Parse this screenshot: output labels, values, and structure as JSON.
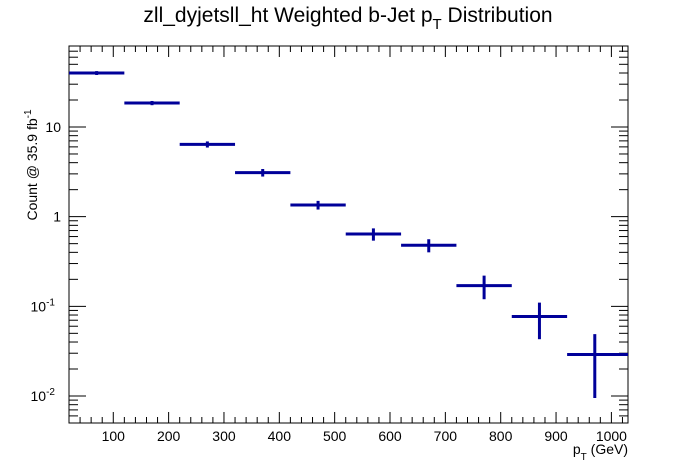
{
  "chart_data": {
    "type": "scatter",
    "title_main": "zll_dyjetsll_ht Weighted b-Jet p",
    "title_sub": "T",
    "title_tail": " Distribution",
    "xlabel_main": "p",
    "xlabel_sub": "T",
    "xlabel_tail": " (GeV)",
    "ylabel_main": "Count @ 35.9 fb",
    "ylabel_sup": "-1",
    "xlim": [
      20,
      1030
    ],
    "ylim": [
      0.005,
      80
    ],
    "yscale": "log",
    "x_ticks": [
      100,
      200,
      300,
      400,
      500,
      600,
      700,
      800,
      900,
      1000
    ],
    "x_tick_labels": [
      "100",
      "200",
      "300",
      "400",
      "500",
      "600",
      "700",
      "800",
      "900",
      "1000"
    ],
    "y_ticks": [
      0.01,
      0.1,
      1,
      10
    ],
    "y_tick_labels": [
      {
        "base": "10",
        "exp": "-2"
      },
      {
        "base": "10",
        "exp": "-1"
      },
      {
        "base": "1",
        "exp": ""
      },
      {
        "base": "10",
        "exp": ""
      }
    ],
    "color": "#000099",
    "series": [
      {
        "points": [
          {
            "x": 70,
            "xlo": 20,
            "xhi": 120,
            "y": 40,
            "ylo": 38,
            "yhi": 42
          },
          {
            "x": 170,
            "xlo": 120,
            "xhi": 220,
            "y": 18.5,
            "ylo": 17.5,
            "yhi": 19.5
          },
          {
            "x": 270,
            "xlo": 220,
            "xhi": 320,
            "y": 6.4,
            "ylo": 5.9,
            "yhi": 6.9
          },
          {
            "x": 370,
            "xlo": 320,
            "xhi": 420,
            "y": 3.1,
            "ylo": 2.8,
            "yhi": 3.4
          },
          {
            "x": 470,
            "xlo": 420,
            "xhi": 520,
            "y": 1.35,
            "ylo": 1.2,
            "yhi": 1.5
          },
          {
            "x": 570,
            "xlo": 520,
            "xhi": 620,
            "y": 0.64,
            "ylo": 0.54,
            "yhi": 0.74
          },
          {
            "x": 670,
            "xlo": 620,
            "xhi": 720,
            "y": 0.48,
            "ylo": 0.4,
            "yhi": 0.56
          },
          {
            "x": 770,
            "xlo": 720,
            "xhi": 820,
            "y": 0.17,
            "ylo": 0.12,
            "yhi": 0.22
          },
          {
            "x": 870,
            "xlo": 820,
            "xhi": 920,
            "y": 0.077,
            "ylo": 0.043,
            "yhi": 0.11
          },
          {
            "x": 970,
            "xlo": 920,
            "xhi": 1030,
            "y": 0.029,
            "ylo": 0.0095,
            "yhi": 0.049
          }
        ]
      }
    ]
  }
}
